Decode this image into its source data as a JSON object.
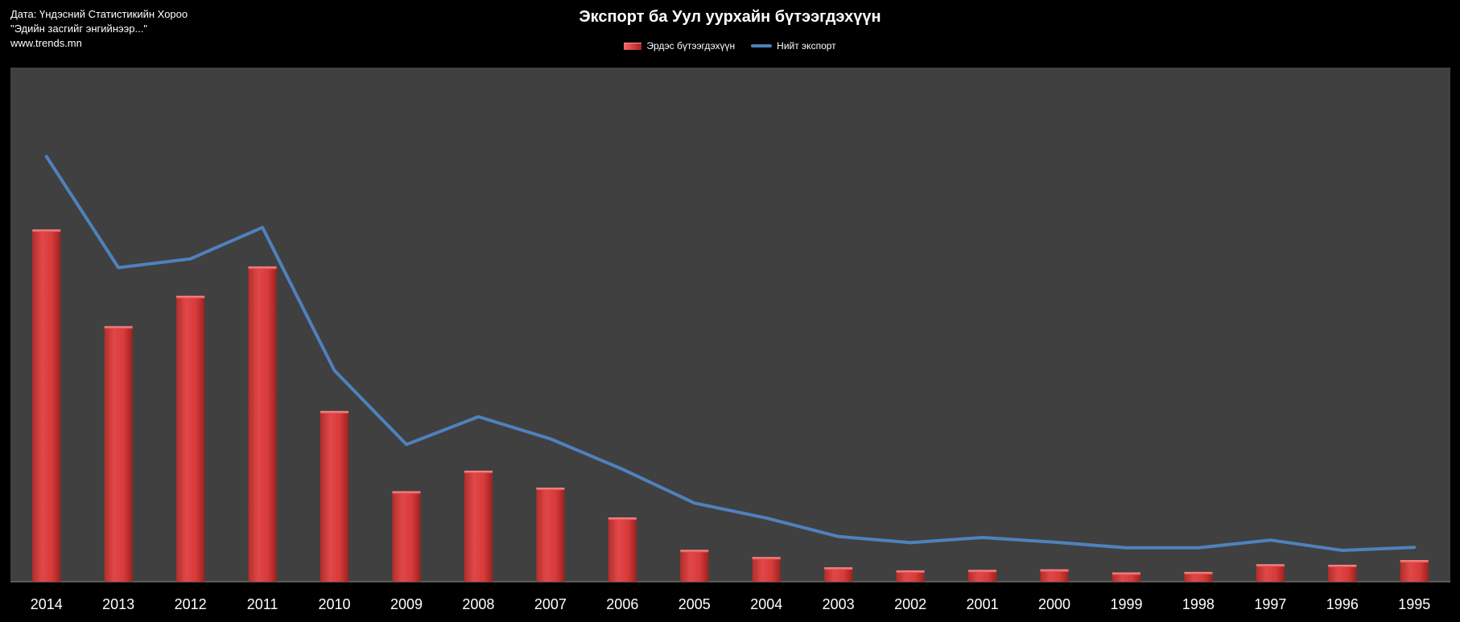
{
  "source_lines": [
    "Дата: Үндэсний Статистикийн Хороо",
    "\"Эдийн засгийг энгийнээр...\"",
    "www.trends.mn"
  ],
  "colors": {
    "background": "#000000",
    "plot_area": "#404040",
    "bar": "#d93b3b",
    "line": "#4f81bd",
    "text": "#ffffff"
  },
  "chart_data": {
    "type": "bar",
    "title": "Экспорт ба Уул уурхайн бүтээгдэхүүн",
    "categories": [
      "2014",
      "2013",
      "2012",
      "2011",
      "2010",
      "2009",
      "2008",
      "2007",
      "2006",
      "2005",
      "2004",
      "2003",
      "2002",
      "2001",
      "2000",
      "1999",
      "1998",
      "1997",
      "1996",
      "1995"
    ],
    "series": [
      {
        "name": "Эрдэс бүтээгдэхүүн",
        "type": "bar",
        "values": [
          68.5,
          49.7,
          55.6,
          61.3,
          33.2,
          17.6,
          21.6,
          18.3,
          12.5,
          6.2,
          4.8,
          2.8,
          2.2,
          2.3,
          2.4,
          1.8,
          1.9,
          3.4,
          3.3,
          4.2
        ]
      },
      {
        "name": "Нийт экспорт",
        "type": "line",
        "values": [
          82.7,
          61.1,
          62.8,
          68.9,
          41.1,
          26.7,
          32.1,
          27.8,
          21.9,
          15.3,
          12.4,
          8.8,
          7.6,
          8.6,
          7.7,
          6.6,
          6.6,
          8.1,
          6.1,
          6.7
        ]
      }
    ],
    "ylim": [
      0,
      100
    ],
    "grid": false,
    "legend": "top-center"
  }
}
